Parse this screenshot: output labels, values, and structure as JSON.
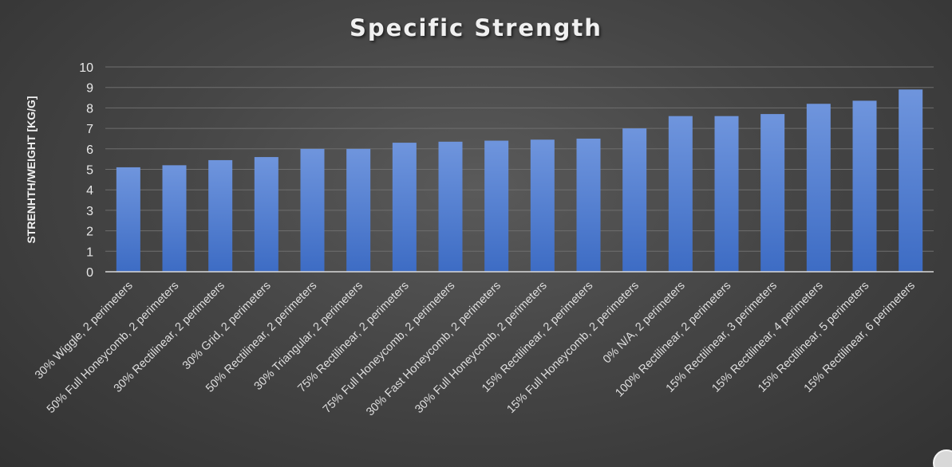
{
  "chart_data": {
    "type": "bar",
    "title": "Specific Strength",
    "xlabel": "",
    "ylabel": "STRENHTH/WEIGHT [KG/G]",
    "ylim": [
      0,
      10
    ],
    "yticks": [
      "0",
      "1",
      "2",
      "3",
      "4",
      "5",
      "6",
      "7",
      "8",
      "9",
      "10"
    ],
    "grid": true,
    "bar_color": "#4f7fd4",
    "bar_color_light": "#6f95dd",
    "bar_color_dark": "#3d6cc4",
    "gridline_color": "#6e6e6e",
    "categories": [
      "30% Wiggle, 2 perimeters",
      "50% Full Honeycomb, 2 perimeters",
      "30% Rectilinear, 2 perimeters",
      "30% Grid, 2 perimeters",
      "50% Rectilinear, 2 perimeters",
      "30% Triangular, 2 perimeters",
      "75% Rectilinear, 2 perimeters",
      "75% Full Honeycomb, 2 perimeters",
      "30% Fast Honeycomb, 2 perimeters",
      "30% Full Honeycomb, 2 perimeters",
      "15% Rectilinear, 2 perimeters",
      "15% Full Honeycomb, 2 perimeters",
      "0% N/A, 2 perimeters",
      "100% Rectilinear, 2 perimeters",
      "15% Rectilinear, 3 perimeters",
      "15% Rectilinear, 4 perimeters",
      "15% Rectilinear, 5 perimeters",
      "15% Rectilinear, 6 perimeters"
    ],
    "values": [
      5.1,
      5.2,
      5.45,
      5.6,
      6.0,
      6.0,
      6.3,
      6.35,
      6.4,
      6.45,
      6.5,
      7.0,
      7.6,
      7.6,
      7.7,
      8.2,
      8.35,
      8.9
    ]
  }
}
